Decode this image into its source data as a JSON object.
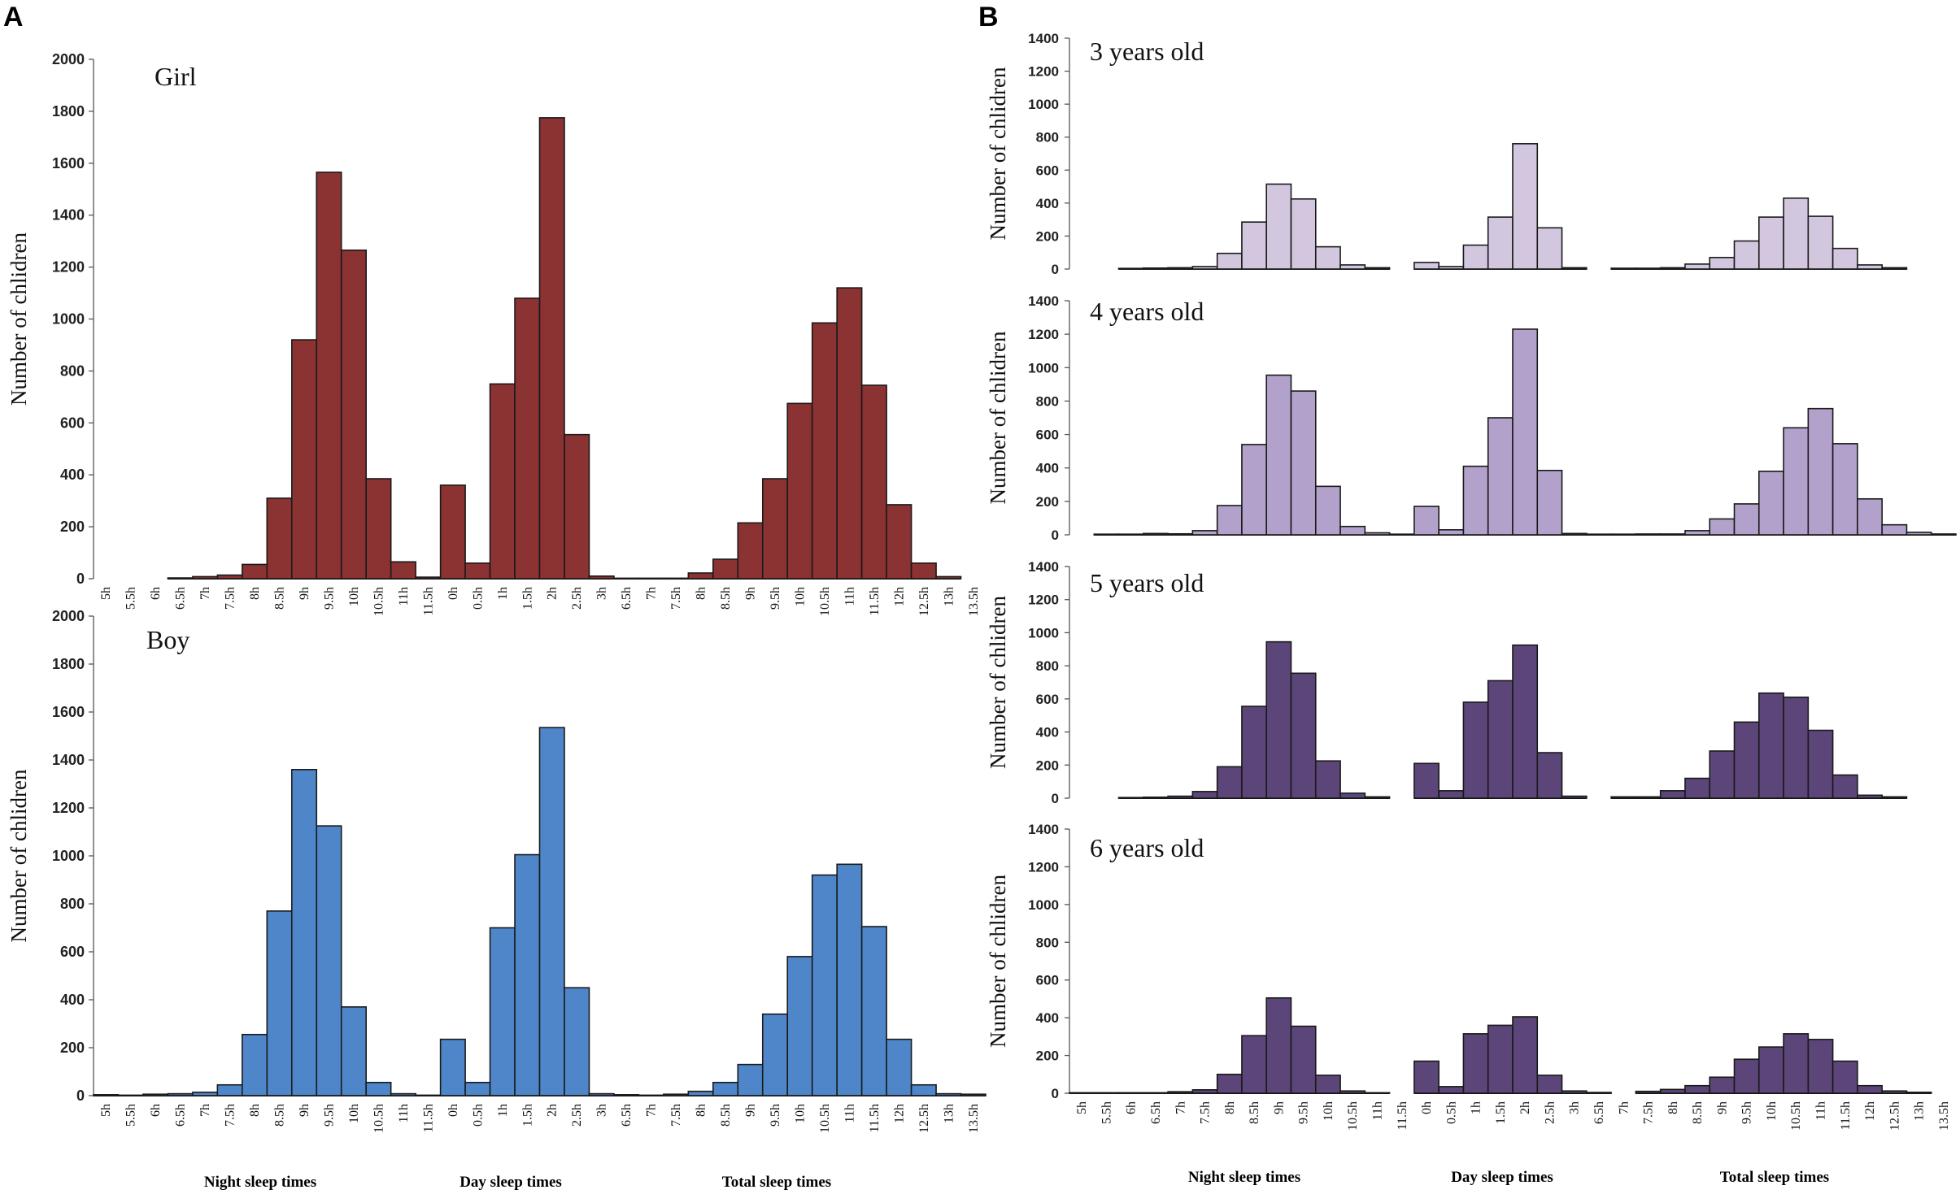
{
  "panels": [
    {
      "letter": "A"
    },
    {
      "letter": "B"
    }
  ],
  "x_categories": [
    "5h",
    "5.5h",
    "6h",
    "6.5h",
    "7h",
    "7.5h",
    "8h",
    "8.5h",
    "9h",
    "9.5h",
    "10h",
    "10.5h",
    "11h",
    "11.5h",
    "0h",
    "0.5h",
    "1h",
    "1.5h",
    "2h",
    "2.5h",
    "3h",
    "6.5h",
    "7h",
    "7.5h",
    "8h",
    "8.5h",
    "9h",
    "9.5h",
    "10h",
    "10.5h",
    "11h",
    "11.5h",
    "12h",
    "12.5h",
    "13h",
    "13.5h"
  ],
  "group_labels": [
    "Night sleep times",
    "Day sleep times",
    "Total sleep times"
  ],
  "colors": {
    "girl": "#8b3232",
    "boy": "#4f86c9",
    "age3": "#d3c7df",
    "age4": "#b2a2cb",
    "age5": "#5b4579",
    "age6": "#5b4579",
    "edge": "#1a1a1a"
  },
  "chart_data": [
    {
      "type": "bar",
      "panel": "A",
      "title": "Girl",
      "ylabel": "Number of chlidren",
      "ylim": [
        0,
        2000
      ],
      "yticks": [
        0,
        200,
        400,
        600,
        800,
        1000,
        1200,
        1400,
        1600,
        1800,
        2000
      ],
      "segments": [
        {
          "name": "Night sleep times",
          "start": 3,
          "values": [
            3,
            8,
            14,
            55,
            310,
            920,
            1565,
            1265,
            385,
            65,
            6
          ]
        },
        {
          "name": "Day sleep times",
          "start": 14,
          "values": [
            360,
            60,
            750,
            1080,
            1775,
            555,
            10,
            2,
            2,
            2
          ]
        },
        {
          "name": "Total sleep times",
          "start": 24,
          "values": [
            22,
            75,
            215,
            385,
            675,
            985,
            1120,
            745,
            285,
            60,
            8
          ]
        }
      ]
    },
    {
      "type": "bar",
      "panel": "A",
      "title": "Boy",
      "ylabel": "Number of chlidren",
      "ylim": [
        0,
        2000
      ],
      "yticks": [
        0,
        200,
        400,
        600,
        800,
        1000,
        1200,
        1400,
        1600,
        1800,
        2000
      ],
      "segments": [
        {
          "name": "Night sleep times",
          "start": 0,
          "values": [
            4,
            2,
            6,
            8,
            14,
            45,
            255,
            770,
            1360,
            1125,
            370,
            55,
            8,
            2
          ]
        },
        {
          "name": "Day sleep times",
          "start": 14,
          "values": [
            235,
            55,
            700,
            1005,
            1535,
            450,
            8,
            4,
            2,
            6
          ]
        },
        {
          "name": "Total sleep times",
          "start": 24,
          "values": [
            18,
            55,
            130,
            340,
            580,
            920,
            965,
            705,
            235,
            45,
            8,
            6
          ]
        }
      ]
    },
    {
      "type": "bar",
      "panel": "B",
      "title": "3 years old",
      "ylabel": "Number of chlidren",
      "ylim": [
        0,
        1400
      ],
      "yticks": [
        0,
        200,
        400,
        600,
        800,
        1000,
        1200,
        1400
      ],
      "segments": [
        {
          "name": "Night sleep times",
          "start": 2,
          "values": [
            4,
            6,
            8,
            15,
            95,
            285,
            515,
            425,
            135,
            25,
            8
          ]
        },
        {
          "name": "Day sleep times",
          "start": 14,
          "values": [
            40,
            15,
            145,
            315,
            760,
            250,
            8
          ]
        },
        {
          "name": "Total sleep times",
          "start": 22,
          "values": [
            5,
            5,
            8,
            30,
            70,
            170,
            315,
            430,
            320,
            125,
            25,
            8
          ]
        }
      ]
    },
    {
      "type": "bar",
      "panel": "B",
      "title": "4 years old",
      "ylabel": "Number of chlidren",
      "ylim": [
        0,
        1400
      ],
      "yticks": [
        0,
        200,
        400,
        600,
        800,
        1000,
        1200,
        1400
      ],
      "segments": [
        {
          "name": "Night sleep times",
          "start": 1,
          "values": [
            4,
            4,
            8,
            6,
            25,
            175,
            540,
            955,
            860,
            290,
            50,
            12,
            4
          ]
        },
        {
          "name": "Day sleep times",
          "start": 14,
          "values": [
            170,
            30,
            410,
            700,
            1230,
            385,
            8,
            4,
            4
          ]
        },
        {
          "name": "Total sleep times",
          "start": 23,
          "values": [
            5,
            5,
            25,
            95,
            185,
            380,
            640,
            755,
            545,
            215,
            60,
            15,
            5
          ]
        }
      ]
    },
    {
      "type": "bar",
      "panel": "B",
      "title": "5 years old",
      "ylabel": "Number of chlidren",
      "ylim": [
        0,
        1400
      ],
      "yticks": [
        0,
        200,
        400,
        600,
        800,
        1000,
        1200,
        1400
      ],
      "segments": [
        {
          "name": "Night sleep times",
          "start": 2,
          "values": [
            4,
            6,
            12,
            40,
            190,
            555,
            945,
            755,
            225,
            30,
            8
          ]
        },
        {
          "name": "Day sleep times",
          "start": 14,
          "values": [
            210,
            45,
            580,
            710,
            925,
            275,
            12
          ]
        },
        {
          "name": "Total sleep times",
          "start": 22,
          "values": [
            8,
            8,
            45,
            120,
            285,
            460,
            635,
            610,
            410,
            140,
            18,
            8
          ]
        }
      ]
    },
    {
      "type": "bar",
      "panel": "B",
      "title": "6 years old",
      "ylabel": "Number of chlidren",
      "ylim": [
        0,
        1400
      ],
      "yticks": [
        0,
        200,
        400,
        600,
        800,
        1000,
        1200,
        1400
      ],
      "segments": [
        {
          "name": "Night sleep times",
          "start": 0,
          "values": [
            2,
            2,
            2,
            2,
            8,
            18,
            100,
            305,
            505,
            355,
            95,
            12,
            2
          ]
        },
        {
          "name": "Day sleep times",
          "start": 14,
          "values": [
            170,
            35,
            315,
            360,
            405,
            95,
            12,
            4
          ]
        },
        {
          "name": "Total sleep times",
          "start": 23,
          "values": [
            10,
            20,
            40,
            85,
            180,
            245,
            315,
            285,
            170,
            40,
            12,
            5
          ]
        }
      ]
    }
  ]
}
